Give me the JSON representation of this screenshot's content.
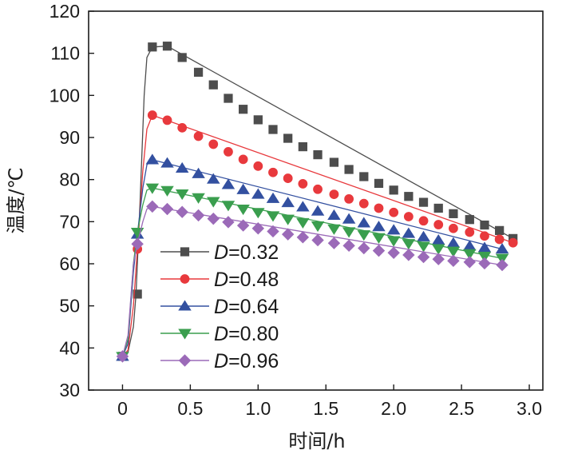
{
  "chart_data": {
    "type": "line",
    "title": "",
    "xlabel": "时间/h",
    "ylabel": "温度/℃",
    "xlim": [
      -0.25,
      3.1
    ],
    "ylim": [
      30,
      120
    ],
    "xticks": [
      0,
      0.5,
      1.0,
      1.5,
      2.0,
      2.5,
      3.0
    ],
    "xtick_labels": [
      "0",
      "0.5",
      "1.0",
      "1.5",
      "2.0",
      "2.5",
      "3.0"
    ],
    "yticks": [
      30,
      40,
      50,
      60,
      70,
      80,
      90,
      100,
      110,
      120
    ],
    "ytick_labels": [
      "30",
      "40",
      "50",
      "60",
      "70",
      "80",
      "90",
      "100",
      "110",
      "120"
    ],
    "legend_position": "lower-left",
    "series": [
      {
        "name": "0.32",
        "legend_prefix": "D",
        "legend_suffix": "=0.32",
        "color": "#4d4d4d",
        "marker": "square",
        "curve": [
          [
            0,
            38
          ],
          [
            0.04,
            39
          ],
          [
            0.08,
            45
          ],
          [
            0.1,
            52.8
          ],
          [
            0.13,
            75
          ],
          [
            0.16,
            100
          ],
          [
            0.18,
            109
          ],
          [
            0.22,
            111.5
          ],
          [
            0.33,
            111.7
          ],
          [
            2.88,
            66
          ]
        ],
        "markers": [
          [
            0,
            38
          ],
          [
            0.11,
            52.8
          ],
          [
            0.22,
            111.5
          ],
          [
            0.33,
            111.7
          ],
          [
            0.44,
            109
          ],
          [
            0.56,
            105.5
          ],
          [
            0.67,
            102.5
          ],
          [
            0.78,
            99.3
          ],
          [
            0.89,
            96.7
          ],
          [
            1.0,
            94.2
          ],
          [
            1.11,
            91.9
          ],
          [
            1.22,
            89.8
          ],
          [
            1.33,
            87.8
          ],
          [
            1.44,
            85.9
          ],
          [
            1.56,
            84.1
          ],
          [
            1.67,
            82.4
          ],
          [
            1.78,
            80.7
          ],
          [
            1.89,
            79.1
          ],
          [
            2.0,
            77.5
          ],
          [
            2.11,
            76.0
          ],
          [
            2.22,
            74.6
          ],
          [
            2.33,
            73.2
          ],
          [
            2.44,
            71.9
          ],
          [
            2.56,
            70.5
          ],
          [
            2.67,
            69.2
          ],
          [
            2.78,
            67.9
          ],
          [
            2.88,
            66.0
          ]
        ]
      },
      {
        "name": "0.48",
        "legend_prefix": "D",
        "legend_suffix": "=0.48",
        "color": "#e8393d",
        "marker": "circle",
        "curve": [
          [
            0,
            38
          ],
          [
            0.04,
            39.5
          ],
          [
            0.08,
            50
          ],
          [
            0.11,
            63.5
          ],
          [
            0.15,
            82
          ],
          [
            0.18,
            92
          ],
          [
            0.22,
            95.3
          ],
          [
            2.88,
            65
          ]
        ],
        "markers": [
          [
            0,
            38
          ],
          [
            0.11,
            63.5
          ],
          [
            0.22,
            95.3
          ],
          [
            0.33,
            94.1
          ],
          [
            0.44,
            92.3
          ],
          [
            0.56,
            90.3
          ],
          [
            0.67,
            88.4
          ],
          [
            0.78,
            86.6
          ],
          [
            0.89,
            84.8
          ],
          [
            1.0,
            83.2
          ],
          [
            1.11,
            81.7
          ],
          [
            1.22,
            80.3
          ],
          [
            1.33,
            79.0
          ],
          [
            1.44,
            77.7
          ],
          [
            1.56,
            76.5
          ],
          [
            1.67,
            75.4
          ],
          [
            1.78,
            74.3
          ],
          [
            1.89,
            73.2
          ],
          [
            2.0,
            72.2
          ],
          [
            2.11,
            71.2
          ],
          [
            2.22,
            70.2
          ],
          [
            2.33,
            69.3
          ],
          [
            2.44,
            68.4
          ],
          [
            2.56,
            67.5
          ],
          [
            2.67,
            66.6
          ],
          [
            2.78,
            65.8
          ],
          [
            2.88,
            65.0
          ]
        ]
      },
      {
        "name": "0.64",
        "legend_prefix": "D",
        "legend_suffix": "=0.64",
        "color": "#3350a0",
        "marker": "triangle-up",
        "curve": [
          [
            0,
            38
          ],
          [
            0.04,
            41
          ],
          [
            0.08,
            58
          ],
          [
            0.11,
            67
          ],
          [
            0.15,
            78
          ],
          [
            0.18,
            83.5
          ],
          [
            0.22,
            84.7
          ],
          [
            2.8,
            63.5
          ]
        ],
        "markers": [
          [
            0,
            38
          ],
          [
            0.11,
            67
          ],
          [
            0.22,
            84.7
          ],
          [
            0.33,
            83.9
          ],
          [
            0.44,
            82.7
          ],
          [
            0.56,
            81.4
          ],
          [
            0.67,
            80.1
          ],
          [
            0.78,
            78.8
          ],
          [
            0.89,
            77.6
          ],
          [
            1.0,
            76.5
          ],
          [
            1.11,
            75.5
          ],
          [
            1.22,
            74.5
          ],
          [
            1.33,
            73.5
          ],
          [
            1.44,
            72.5
          ],
          [
            1.56,
            71.5
          ],
          [
            1.67,
            70.6
          ],
          [
            1.78,
            69.7
          ],
          [
            1.89,
            68.8
          ],
          [
            2.0,
            68.0
          ],
          [
            2.11,
            67.2
          ],
          [
            2.22,
            66.4
          ],
          [
            2.33,
            65.6
          ],
          [
            2.44,
            64.9
          ],
          [
            2.56,
            64.2
          ],
          [
            2.67,
            63.8
          ],
          [
            2.8,
            63.5
          ]
        ]
      },
      {
        "name": "0.80",
        "legend_prefix": "D",
        "legend_suffix": "=0.80",
        "color": "#3a9e4e",
        "marker": "triangle-down",
        "curve": [
          [
            0,
            38
          ],
          [
            0.04,
            42
          ],
          [
            0.08,
            60
          ],
          [
            0.11,
            67.5
          ],
          [
            0.15,
            74
          ],
          [
            0.18,
            77.5
          ],
          [
            0.22,
            78
          ],
          [
            2.8,
            61.3
          ]
        ],
        "markers": [
          [
            0,
            38
          ],
          [
            0.11,
            67.5
          ],
          [
            0.22,
            78.0
          ],
          [
            0.33,
            77.4
          ],
          [
            0.44,
            76.6
          ],
          [
            0.56,
            75.7
          ],
          [
            0.67,
            74.8
          ],
          [
            0.78,
            73.9
          ],
          [
            0.89,
            73.0
          ],
          [
            1.0,
            72.2
          ],
          [
            1.11,
            71.4
          ],
          [
            1.22,
            70.6
          ],
          [
            1.33,
            69.8
          ],
          [
            1.44,
            69.0
          ],
          [
            1.56,
            68.3
          ],
          [
            1.67,
            67.6
          ],
          [
            1.78,
            66.9
          ],
          [
            1.89,
            66.2
          ],
          [
            2.0,
            65.5
          ],
          [
            2.11,
            64.8
          ],
          [
            2.22,
            64.2
          ],
          [
            2.33,
            63.6
          ],
          [
            2.44,
            63.0
          ],
          [
            2.56,
            62.4
          ],
          [
            2.67,
            61.8
          ],
          [
            2.8,
            61.3
          ]
        ]
      },
      {
        "name": "0.96",
        "legend_prefix": "D",
        "legend_suffix": "=0.96",
        "color": "#9b6ab8",
        "marker": "diamond",
        "curve": [
          [
            0,
            38
          ],
          [
            0.04,
            43
          ],
          [
            0.08,
            60
          ],
          [
            0.11,
            64.7
          ],
          [
            0.15,
            70
          ],
          [
            0.18,
            73
          ],
          [
            0.22,
            73.6
          ],
          [
            2.8,
            59.7
          ]
        ],
        "markers": [
          [
            0,
            38
          ],
          [
            0.11,
            64.7
          ],
          [
            0.22,
            73.6
          ],
          [
            0.33,
            73.0
          ],
          [
            0.44,
            72.3
          ],
          [
            0.56,
            71.5
          ],
          [
            0.67,
            70.7
          ],
          [
            0.78,
            69.9
          ],
          [
            0.89,
            69.1
          ],
          [
            1.0,
            68.4
          ],
          [
            1.11,
            67.7
          ],
          [
            1.22,
            67.0
          ],
          [
            1.33,
            66.3
          ],
          [
            1.44,
            65.6
          ],
          [
            1.56,
            64.9
          ],
          [
            1.67,
            64.3
          ],
          [
            1.78,
            63.7
          ],
          [
            1.89,
            63.1
          ],
          [
            2.0,
            62.6
          ],
          [
            2.11,
            62.1
          ],
          [
            2.22,
            61.6
          ],
          [
            2.33,
            61.1
          ],
          [
            2.44,
            60.7
          ],
          [
            2.56,
            60.4
          ],
          [
            2.67,
            60.1
          ],
          [
            2.8,
            59.7
          ]
        ]
      }
    ]
  }
}
